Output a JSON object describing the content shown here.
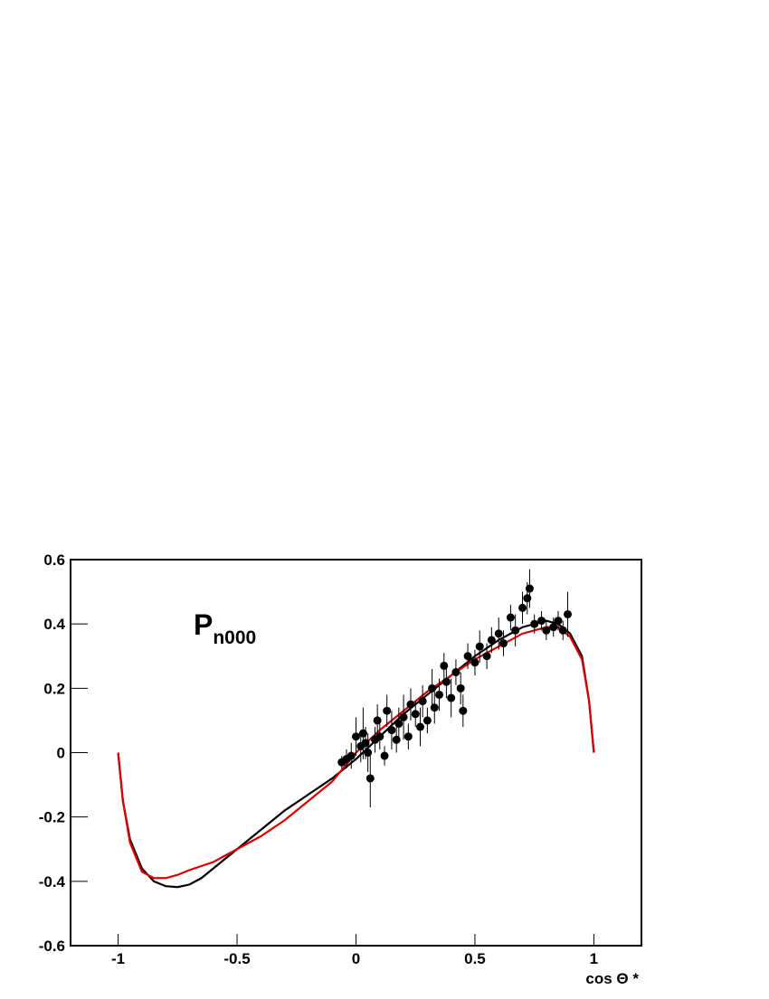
{
  "chart_data": {
    "type": "line",
    "xlabel": "cos Θ *",
    "annotation": {
      "text": "P",
      "subscript": "n000"
    },
    "xlim": [
      -1.2,
      1.2
    ],
    "ylim": [
      -0.6,
      0.6
    ],
    "xticks": [
      -1,
      -0.5,
      0,
      0.5,
      1
    ],
    "yticks": [
      -0.6,
      -0.4,
      -0.2,
      0,
      0.2,
      0.4,
      0.6
    ],
    "series": [
      {
        "type": "line",
        "color": "#000000",
        "x": [
          -1,
          -0.98,
          -0.95,
          -0.9,
          -0.85,
          -0.8,
          -0.75,
          -0.7,
          -0.65,
          -0.6,
          -0.5,
          -0.4,
          -0.3,
          -0.2,
          -0.1,
          0,
          0.1,
          0.2,
          0.3,
          0.4,
          0.5,
          0.6,
          0.7,
          0.8,
          0.85,
          0.9,
          0.95,
          0.98,
          1
        ],
        "values": [
          0,
          -0.15,
          -0.27,
          -0.36,
          -0.4,
          -0.415,
          -0.418,
          -0.41,
          -0.39,
          -0.36,
          -0.3,
          -0.24,
          -0.18,
          -0.13,
          -0.08,
          -0.02,
          0.05,
          0.12,
          0.18,
          0.24,
          0.3,
          0.35,
          0.39,
          0.41,
          0.4,
          0.37,
          0.3,
          0.16,
          0
        ]
      },
      {
        "type": "line",
        "color": "#e00000",
        "x": [
          -1,
          -0.98,
          -0.95,
          -0.9,
          -0.85,
          -0.8,
          -0.75,
          -0.7,
          -0.6,
          -0.5,
          -0.4,
          -0.3,
          -0.2,
          -0.1,
          0,
          0.1,
          0.2,
          0.3,
          0.4,
          0.5,
          0.6,
          0.7,
          0.8,
          0.85,
          0.9,
          0.95,
          0.98,
          1
        ],
        "values": [
          0,
          -0.15,
          -0.28,
          -0.37,
          -0.39,
          -0.39,
          -0.38,
          -0.365,
          -0.34,
          -0.3,
          -0.26,
          -0.21,
          -0.15,
          -0.09,
          0,
          0.07,
          0.13,
          0.19,
          0.24,
          0.29,
          0.33,
          0.37,
          0.39,
          0.39,
          0.36,
          0.29,
          0.16,
          0
        ]
      },
      {
        "type": "scatter",
        "color": "#000000",
        "x": [
          -0.06,
          -0.04,
          -0.02,
          0.0,
          0.02,
          0.03,
          0.04,
          0.05,
          0.06,
          0.08,
          0.09,
          0.1,
          0.12,
          0.13,
          0.15,
          0.17,
          0.18,
          0.2,
          0.22,
          0.23,
          0.25,
          0.27,
          0.28,
          0.3,
          0.32,
          0.33,
          0.35,
          0.37,
          0.38,
          0.4,
          0.42,
          0.44,
          0.45,
          0.47,
          0.5,
          0.52,
          0.55,
          0.57,
          0.6,
          0.62,
          0.65,
          0.67,
          0.7,
          0.72,
          0.73,
          0.75,
          0.78,
          0.8,
          0.83,
          0.85,
          0.87,
          0.89
        ],
        "values": [
          -0.03,
          -0.02,
          -0.01,
          0.05,
          0.02,
          0.06,
          0.03,
          0.0,
          -0.08,
          0.04,
          0.1,
          0.05,
          -0.01,
          0.13,
          0.07,
          0.04,
          0.09,
          0.11,
          0.05,
          0.15,
          0.12,
          0.08,
          0.16,
          0.1,
          0.2,
          0.14,
          0.18,
          0.27,
          0.22,
          0.17,
          0.25,
          0.2,
          0.13,
          0.3,
          0.28,
          0.33,
          0.3,
          0.35,
          0.37,
          0.34,
          0.42,
          0.38,
          0.45,
          0.48,
          0.51,
          0.4,
          0.41,
          0.38,
          0.39,
          0.41,
          0.38,
          0.43
        ],
        "errors": [
          0.02,
          0.03,
          0.04,
          0.06,
          0.05,
          0.08,
          0.05,
          0.06,
          0.09,
          0.04,
          0.05,
          0.04,
          0.03,
          0.05,
          0.06,
          0.04,
          0.05,
          0.07,
          0.04,
          0.05,
          0.04,
          0.06,
          0.05,
          0.04,
          0.06,
          0.05,
          0.05,
          0.04,
          0.05,
          0.06,
          0.04,
          0.05,
          0.05,
          0.04,
          0.04,
          0.05,
          0.04,
          0.04,
          0.05,
          0.04,
          0.04,
          0.05,
          0.05,
          0.05,
          0.06,
          0.03,
          0.03,
          0.03,
          0.03,
          0.03,
          0.03,
          0.07
        ]
      }
    ]
  }
}
